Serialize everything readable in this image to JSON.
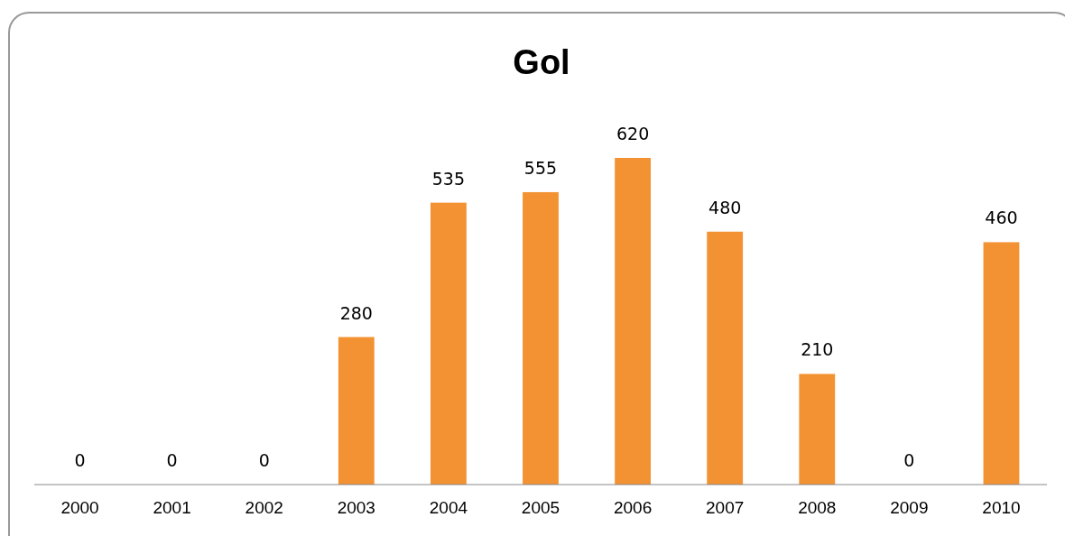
{
  "chart_data": {
    "type": "bar",
    "title": "Gol",
    "categories": [
      "2000",
      "2001",
      "2002",
      "2003",
      "2004",
      "2005",
      "2006",
      "2007",
      "2008",
      "2009",
      "2010"
    ],
    "values": [
      0,
      0,
      0,
      280,
      535,
      555,
      620,
      480,
      210,
      0,
      460
    ],
    "color": "#f39232",
    "data_labels": true
  }
}
